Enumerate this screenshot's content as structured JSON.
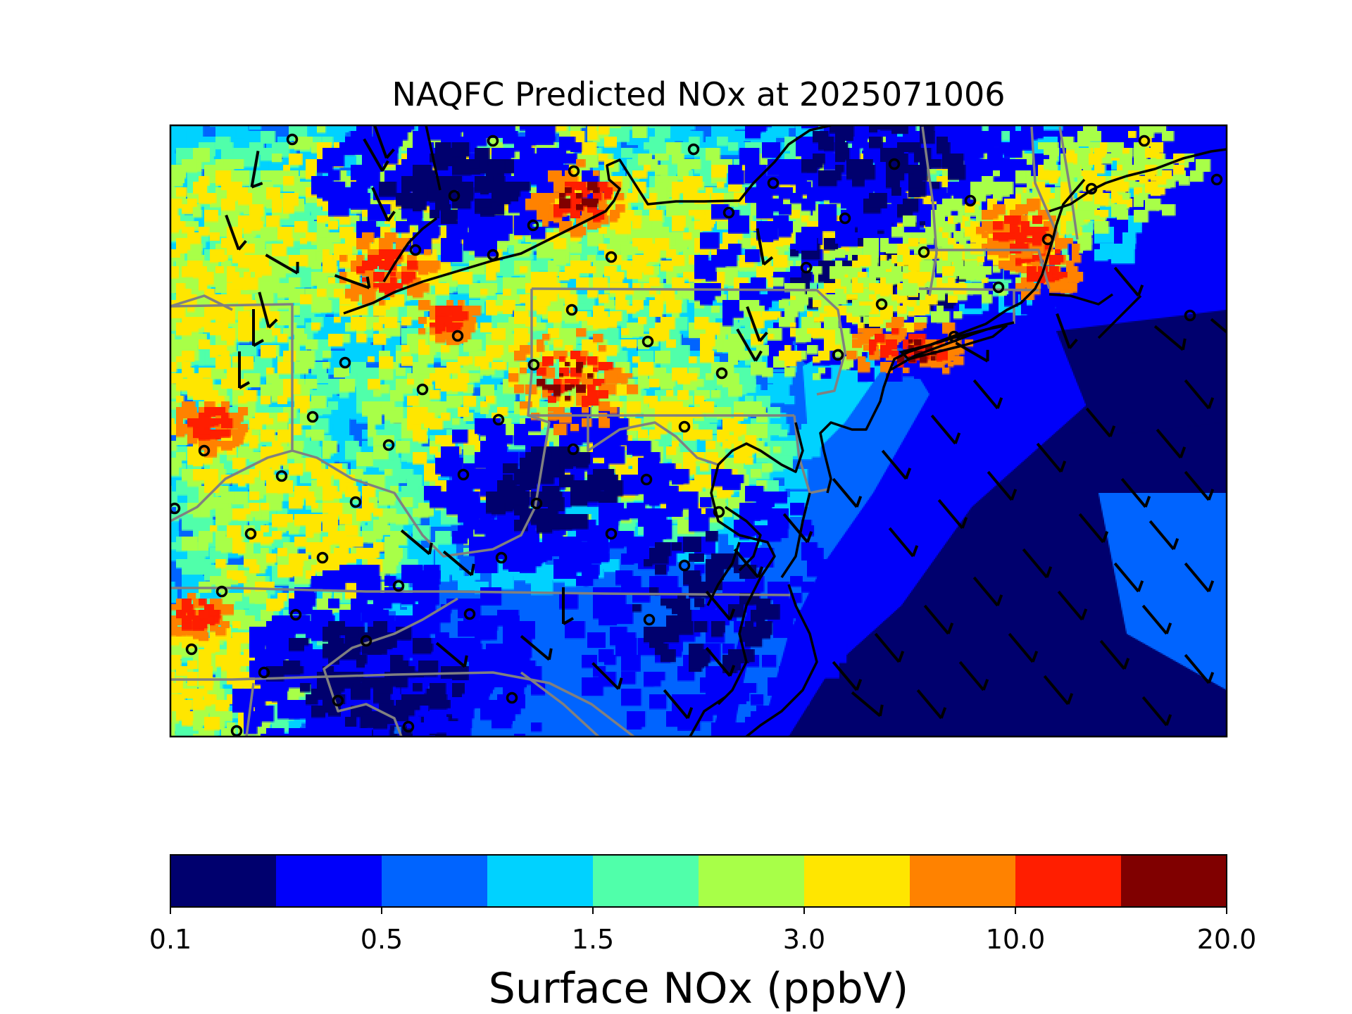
{
  "map": {
    "title": "NAQFC Predicted NOx at 2025071006",
    "colorbar": {
      "label": "Surface NOx (ppbV)",
      "tick_labels": [
        "0.1",
        "0.5",
        "1.5",
        "3.0",
        "10.0",
        "20.0"
      ],
      "colors": [
        "#00006e",
        "#0000fa",
        "#0064ff",
        "#00d2ff",
        "#50ffaa",
        "#a8ff48",
        "#ffe600",
        "#ff8200",
        "#ff1e00",
        "#800000"
      ]
    },
    "style": {
      "state_border_color": "#808080",
      "coastline_color": "#000000",
      "station_marker_color": "#000000",
      "wind_barb_color": "#000000"
    }
  }
}
